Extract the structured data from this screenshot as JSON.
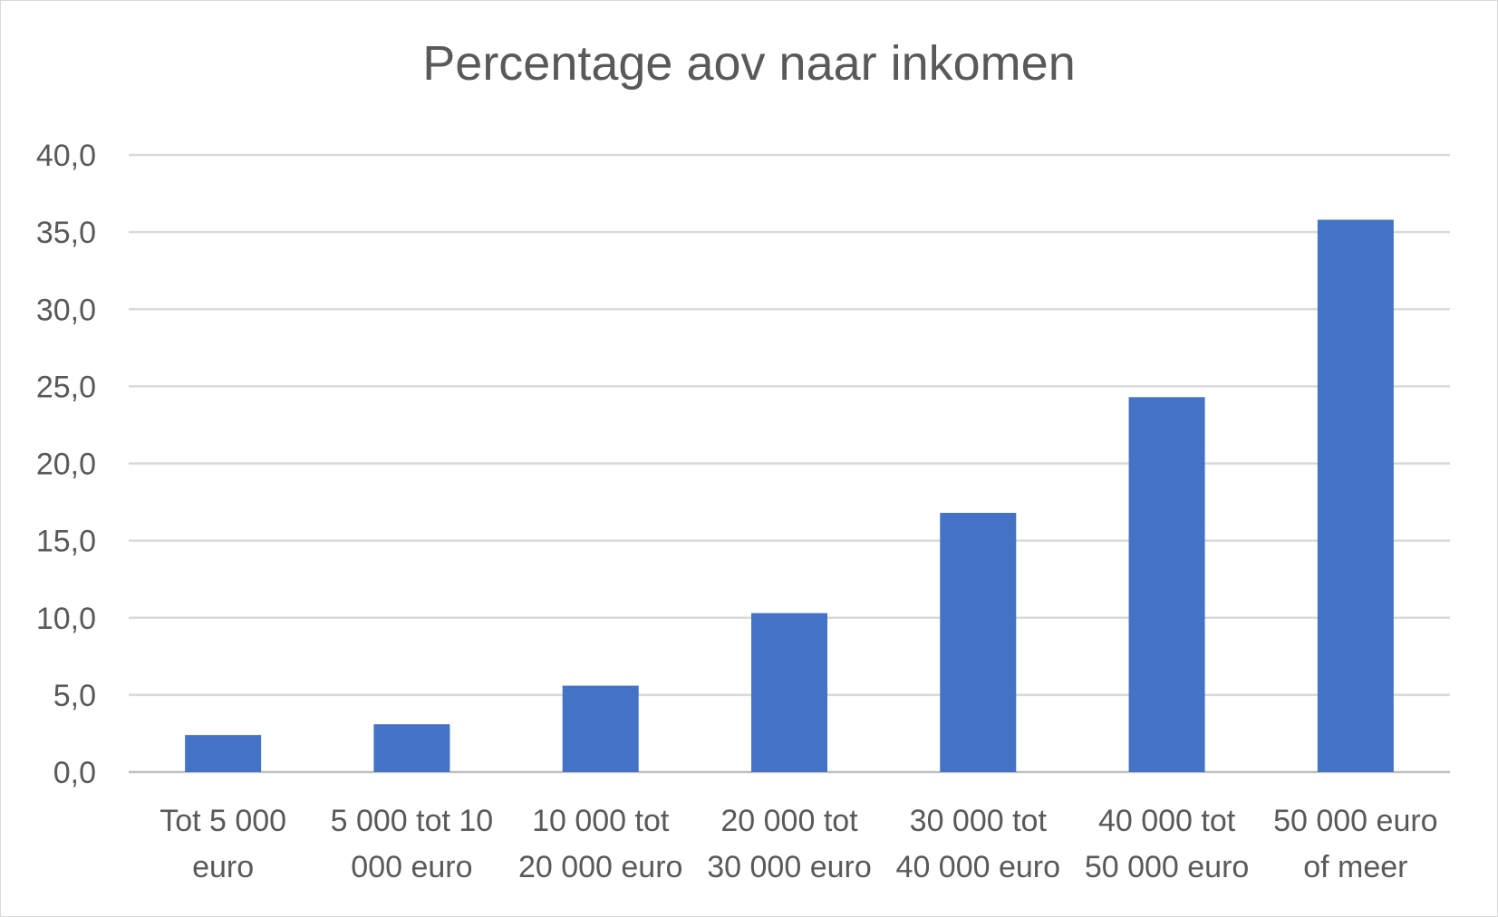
{
  "chart_data": {
    "type": "bar",
    "title": "Percentage aov naar inkomen",
    "xlabel": "",
    "ylabel": "",
    "categories": [
      [
        "Tot 5 000",
        "euro"
      ],
      [
        "5 000 tot 10",
        "000 euro"
      ],
      [
        "10 000 tot",
        "20 000 euro"
      ],
      [
        "20 000 tot",
        "30 000 euro"
      ],
      [
        "30 000 tot",
        "40 000 euro"
      ],
      [
        "40 000 tot",
        "50 000 euro"
      ],
      [
        "50 000 euro",
        "of meer"
      ]
    ],
    "values": [
      2.4,
      3.1,
      5.6,
      10.3,
      16.8,
      24.3,
      35.8
    ],
    "ylim": [
      0,
      40
    ],
    "yticks": [
      "0,0",
      "5,0",
      "10,0",
      "15,0",
      "20,0",
      "25,0",
      "30,0",
      "35,0",
      "40,0"
    ],
    "bar_color": "#4472C4",
    "grid": true,
    "legend": "none"
  }
}
